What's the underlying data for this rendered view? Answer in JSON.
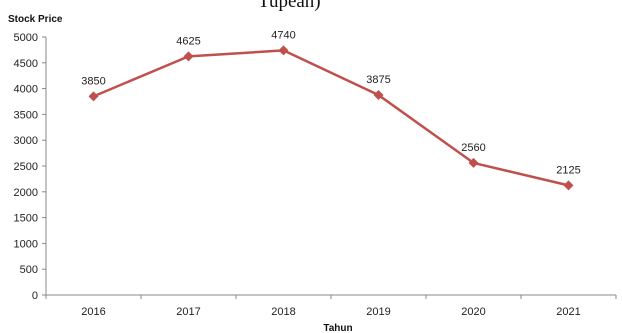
{
  "caption_fragment": "Tupean)",
  "chart_data": {
    "type": "line",
    "ylabel": "Stock Price",
    "xlabel": "Tahun",
    "categories": [
      "2016",
      "2017",
      "2018",
      "2019",
      "2020",
      "2021"
    ],
    "series": [
      {
        "values": [
          3850,
          4625,
          4740,
          3875,
          2560,
          2125
        ],
        "color": "#c0504d"
      }
    ],
    "ylim": [
      0,
      5000
    ],
    "ytick_step": 500,
    "yticks": [
      "0",
      "500",
      "1000",
      "1500",
      "2000",
      "2500",
      "3000",
      "3500",
      "4000",
      "4500",
      "5000"
    ],
    "data_labels": [
      "3850",
      "4625",
      "4740",
      "3875",
      "2560",
      "2125"
    ],
    "grid": false,
    "marker": "diamond"
  }
}
